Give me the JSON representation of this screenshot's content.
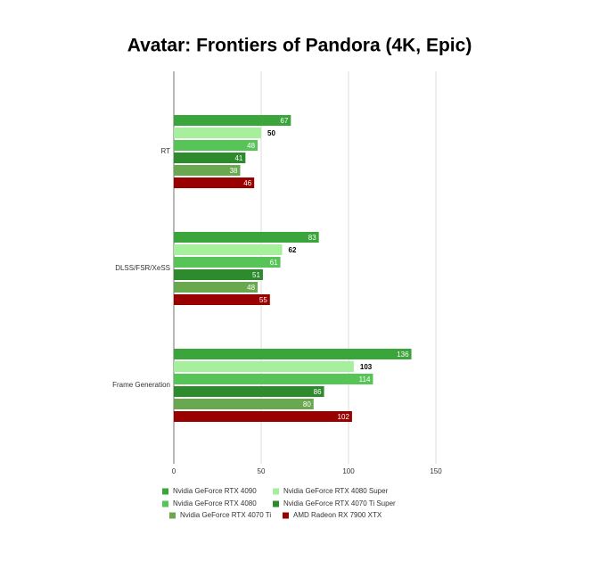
{
  "chart_data": {
    "type": "hbar",
    "title": "Avatar: Frontiers of Pandora (4K, Epic)",
    "categories": [
      "RT",
      "DLSS/FSR/XeSS",
      "Frame Generation"
    ],
    "series": [
      {
        "name": "Nvidia GeForce RTX 4090",
        "color": "#3aa53a",
        "values": [
          67,
          83,
          136
        ]
      },
      {
        "name": "Nvidia GeForce RTX 4080 Super",
        "color": "#a6ef9c",
        "values": [
          50,
          62,
          103
        ]
      },
      {
        "name": "Nvidia GeForce RTX 4080",
        "color": "#56c456",
        "values": [
          48,
          61,
          114
        ]
      },
      {
        "name": "Nvidia GeForce RTX 4070 Ti Super",
        "color": "#2d8a2d",
        "values": [
          41,
          51,
          86
        ]
      },
      {
        "name": "Nvidia GeForce RTX 4070 Ti",
        "color": "#6aa84f",
        "values": [
          38,
          48,
          80
        ]
      },
      {
        "name": "AMD Radeon RX 7900 XTX",
        "color": "#990000",
        "values": [
          46,
          55,
          102
        ]
      }
    ],
    "xlim": [
      0,
      150
    ],
    "xticks": [
      0,
      50,
      100,
      150
    ],
    "grid": true
  }
}
